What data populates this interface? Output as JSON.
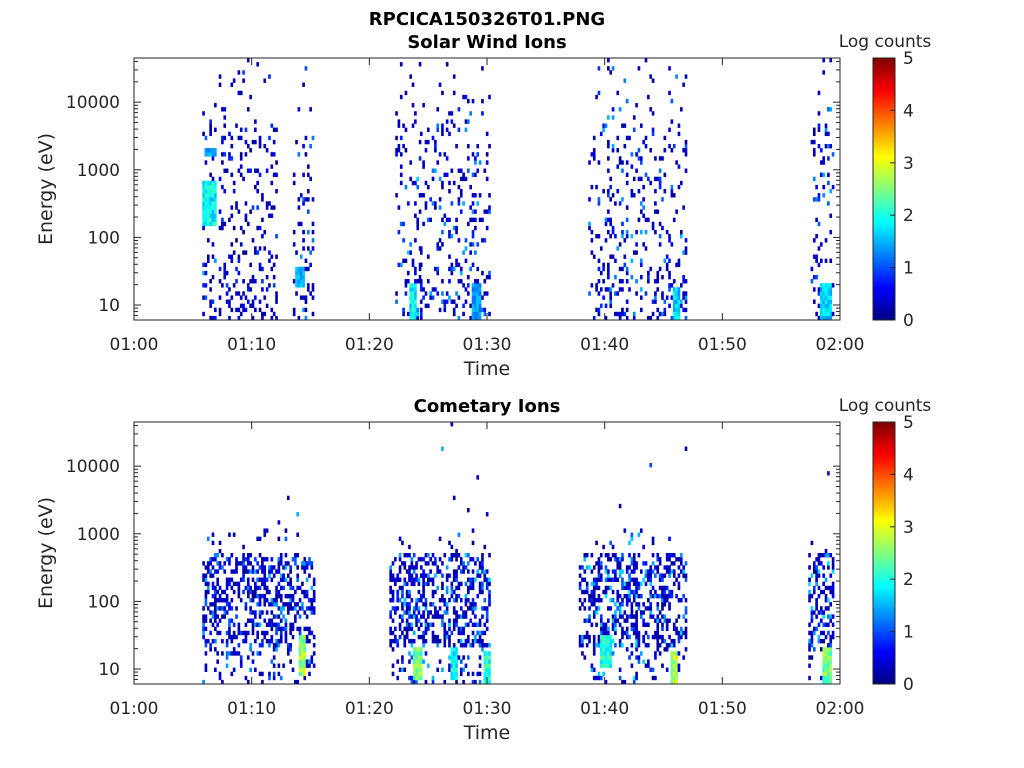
{
  "figure": {
    "title": "RPCICA150326T01.PNG"
  },
  "colorbar_label": "Log counts",
  "chart_data": [
    {
      "type": "heatmap",
      "title": "Solar Wind Ions",
      "xlabel": "Time",
      "ylabel": "Energy (eV)",
      "x_ticks": [
        "01:00",
        "01:10",
        "01:20",
        "01:30",
        "01:40",
        "01:50",
        "02:00"
      ],
      "x_range_min": [
        0,
        60
      ],
      "y_ticks": [
        "10",
        "100",
        "1000",
        "10000"
      ],
      "y_scale": "log",
      "y_range_ev": [
        6,
        45000
      ],
      "colorbar": {
        "label": "Log counts",
        "range": [
          0,
          5
        ],
        "ticks": [
          "0",
          "1",
          "2",
          "3",
          "4",
          "5"
        ]
      },
      "bursts": [
        {
          "start_min": 5.8,
          "end_min": 7.0,
          "peak": 2.2
        },
        {
          "start_min": 7.2,
          "end_min": 12.0,
          "peak": 1.2
        },
        {
          "start_min": 13.5,
          "end_min": 15.2,
          "peak": 1.8
        },
        {
          "start_min": 22.2,
          "end_min": 24.3,
          "peak": 2.3
        },
        {
          "start_min": 24.3,
          "end_min": 30.2,
          "peak": 2.0
        },
        {
          "start_min": 38.6,
          "end_min": 42.8,
          "peak": 2.0
        },
        {
          "start_min": 42.8,
          "end_min": 47.0,
          "peak": 2.0
        },
        {
          "start_min": 57.5,
          "end_min": 59.4,
          "peak": 2.0
        }
      ],
      "hot_regions": [
        {
          "t0": 5.8,
          "t1": 6.9,
          "e0": 150,
          "e1": 700,
          "level": 2.0
        },
        {
          "t0": 5.9,
          "t1": 6.9,
          "e0": 1500,
          "e1": 2200,
          "level": 1.5
        },
        {
          "t0": 13.6,
          "t1": 14.3,
          "e0": 18,
          "e1": 35,
          "level": 1.6
        },
        {
          "t0": 23.3,
          "t1": 23.9,
          "e0": 6,
          "e1": 22,
          "level": 2.0
        },
        {
          "t0": 28.5,
          "t1": 29.3,
          "e0": 6,
          "e1": 20,
          "level": 1.5
        },
        {
          "t0": 45.8,
          "t1": 46.3,
          "e0": 6,
          "e1": 18,
          "level": 1.8
        },
        {
          "t0": 58.3,
          "t1": 59.2,
          "e0": 6,
          "e1": 20,
          "level": 1.8
        }
      ]
    },
    {
      "type": "heatmap",
      "title": "Cometary Ions",
      "xlabel": "Time",
      "ylabel": "Energy (eV)",
      "x_ticks": [
        "01:00",
        "01:10",
        "01:20",
        "01:30",
        "01:40",
        "01:50",
        "02:00"
      ],
      "x_range_min": [
        0,
        60
      ],
      "y_ticks": [
        "10",
        "100",
        "1000",
        "10000"
      ],
      "y_scale": "log",
      "y_range_ev": [
        6,
        45000
      ],
      "colorbar": {
        "label": "Log counts",
        "range": [
          0,
          5
        ],
        "ticks": [
          "0",
          "1",
          "2",
          "3",
          "4",
          "5"
        ]
      },
      "bursts": [
        {
          "start_min": 5.8,
          "end_min": 15.3,
          "peak": 2.0
        },
        {
          "start_min": 21.7,
          "end_min": 30.2,
          "peak": 2.2
        },
        {
          "start_min": 37.8,
          "end_min": 47.0,
          "peak": 2.3
        },
        {
          "start_min": 57.3,
          "end_min": 59.5,
          "peak": 2.3
        }
      ],
      "hot_regions": [
        {
          "t0": 13.8,
          "t1": 14.5,
          "e0": 8,
          "e1": 30,
          "level": 2.8
        },
        {
          "t0": 23.6,
          "t1": 24.3,
          "e0": 7,
          "e1": 20,
          "level": 2.6
        },
        {
          "t0": 26.8,
          "t1": 27.3,
          "e0": 7,
          "e1": 20,
          "level": 2.0
        },
        {
          "t0": 29.5,
          "t1": 30.1,
          "e0": 6,
          "e1": 18,
          "level": 2.2
        },
        {
          "t0": 45.6,
          "t1": 46.1,
          "e0": 6,
          "e1": 18,
          "level": 3.0
        },
        {
          "t0": 58.4,
          "t1": 59.2,
          "e0": 6,
          "e1": 20,
          "level": 2.6
        },
        {
          "t0": 39.5,
          "t1": 40.5,
          "e0": 10,
          "e1": 30,
          "level": 2.2
        }
      ]
    }
  ]
}
